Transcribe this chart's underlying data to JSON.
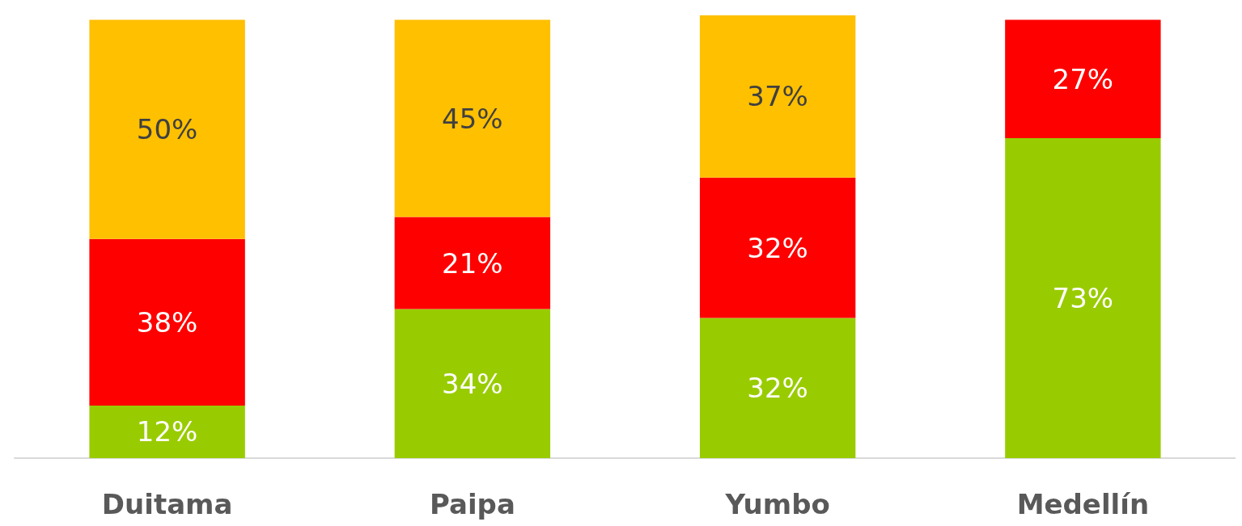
{
  "chart_data": {
    "type": "bar",
    "stacked": true,
    "categories": [
      "Duitama",
      "Paipa",
      "Yumbo",
      "Medellín"
    ],
    "series": [
      {
        "color": "#99cc00",
        "values": [
          12,
          34,
          32,
          73
        ],
        "value_labels": [
          "12%",
          "34%",
          "32%",
          "73%"
        ]
      },
      {
        "color": "#ff0000",
        "values": [
          38,
          21,
          32,
          27
        ],
        "value_labels": [
          "38%",
          "21%",
          "32%",
          "27%"
        ]
      },
      {
        "color": "#ffc000",
        "values": [
          50,
          45,
          37,
          null
        ],
        "value_labels": [
          "50%",
          "45%",
          "37%",
          null
        ]
      }
    ]
  }
}
